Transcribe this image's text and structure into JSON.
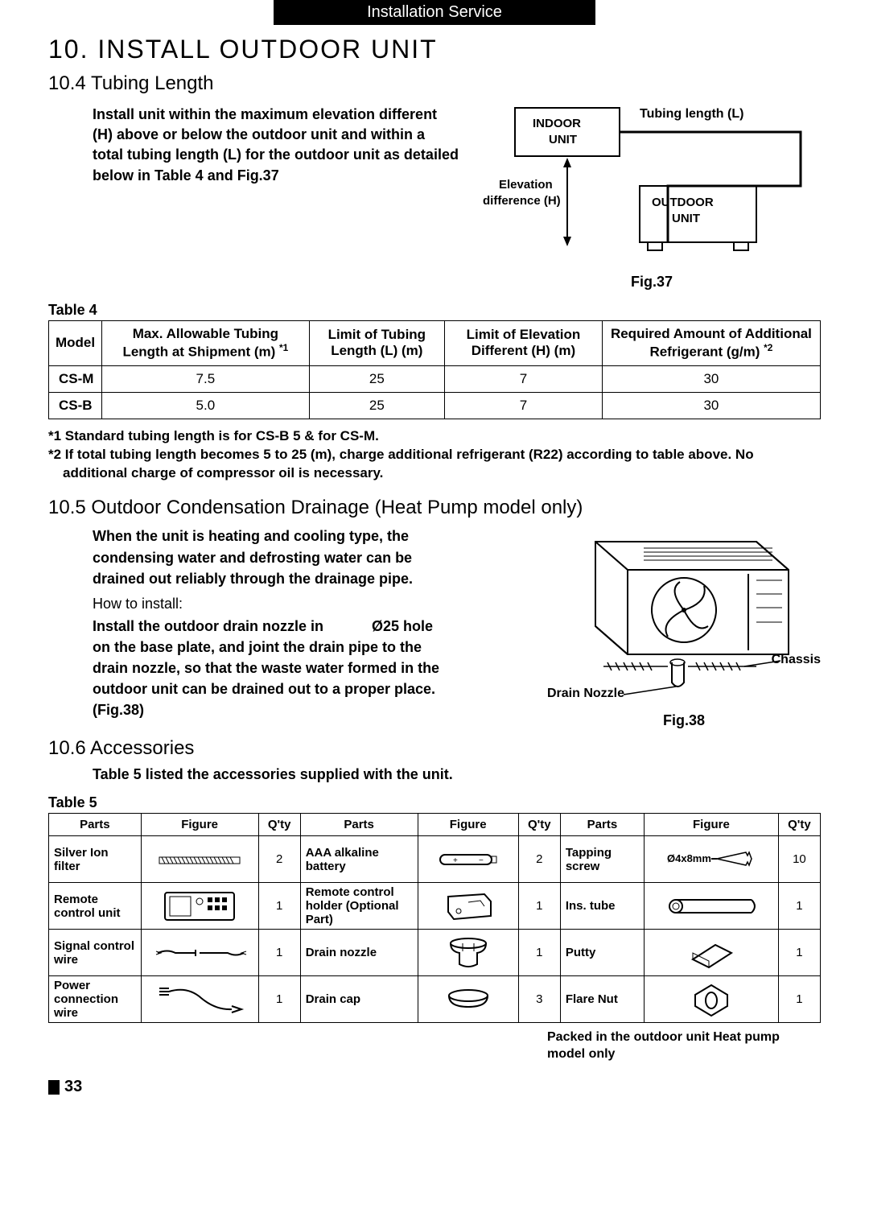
{
  "header": "Installation Service",
  "title": "10. INSTALL OUTDOOR UNIT",
  "s104": {
    "heading": "10.4  Tubing Length",
    "body": "Install unit within the maximum elevation different (H) above or below the outdoor unit and within a total tubing length (L) for the outdoor unit as detailed below in Table 4 and Fig.37",
    "fig": {
      "indoor": "INDOOR UNIT",
      "outdoor": "OUTDOOR UNIT",
      "tubing": "Tubing length (L)",
      "elev": "Elevation difference (H)",
      "caption": "Fig.37"
    }
  },
  "table4": {
    "label": "Table 4",
    "headers": [
      "Model",
      "Max. Allowable Tubing Length at Shipment (m)",
      "Limit of Tubing Length (L) (m)",
      "Limit of Elevation Different (H) (m)",
      "Required Amount of Additional Refrigerant (g/m)"
    ],
    "sup1": "*1",
    "sup2": "*2",
    "rows": [
      [
        "CS-M",
        "7.5",
        "25",
        "7",
        "30"
      ],
      [
        "CS-B",
        "5.0",
        "25",
        "7",
        "30"
      ]
    ]
  },
  "notes": [
    "*1 Standard tubing length is for CS-B 5 & for CS-M.",
    "*2 If total tubing length becomes 5 to 25 (m), charge additional refrigerant (R22) according to table above. No additional charge of compressor oil is necessary."
  ],
  "s105": {
    "heading": "10.5  Outdoor Condensation Drainage (Heat Pump model only)",
    "p1": "When the unit is heating and cooling type, the condensing water and defrosting water can be drained out reliably through the drainage pipe.",
    "how": "How to install:",
    "p2": "Install the outdoor drain nozzle in            Ø25 hole on the base plate, and joint the drain pipe to the drain nozzle, so that the waste water formed in the outdoor unit can be drained out to a proper place. (Fig.38)",
    "fig": {
      "chassis": "Chassis",
      "drain": "Drain Nozzle",
      "caption": "Fig.38"
    }
  },
  "s106": {
    "heading": "10.6 Accessories",
    "intro": "Table 5 listed the accessories supplied with the unit.",
    "label": "Table 5",
    "headers": [
      "Parts",
      "Figure",
      "Q'ty",
      "Parts",
      "Figure",
      "Q'ty",
      "Parts",
      "Figure",
      "Q'ty"
    ],
    "rows": [
      [
        "Silver Ion filter",
        "2",
        "AAA alkaline battery",
        "2",
        "Tapping screw",
        "Ø4x8mm",
        "10"
      ],
      [
        "Remote control unit",
        "1",
        "Remote control holder (Optional Part)",
        "1",
        "Ins. tube",
        "1"
      ],
      [
        "Signal control wire",
        "1",
        "Drain nozzle",
        "1",
        "Putty",
        "1"
      ],
      [
        "Power connection wire",
        "1",
        "Drain cap",
        "3",
        "Flare Nut",
        "1"
      ]
    ]
  },
  "footer": "Packed in the outdoor unit Heat pump model only",
  "page": "33"
}
